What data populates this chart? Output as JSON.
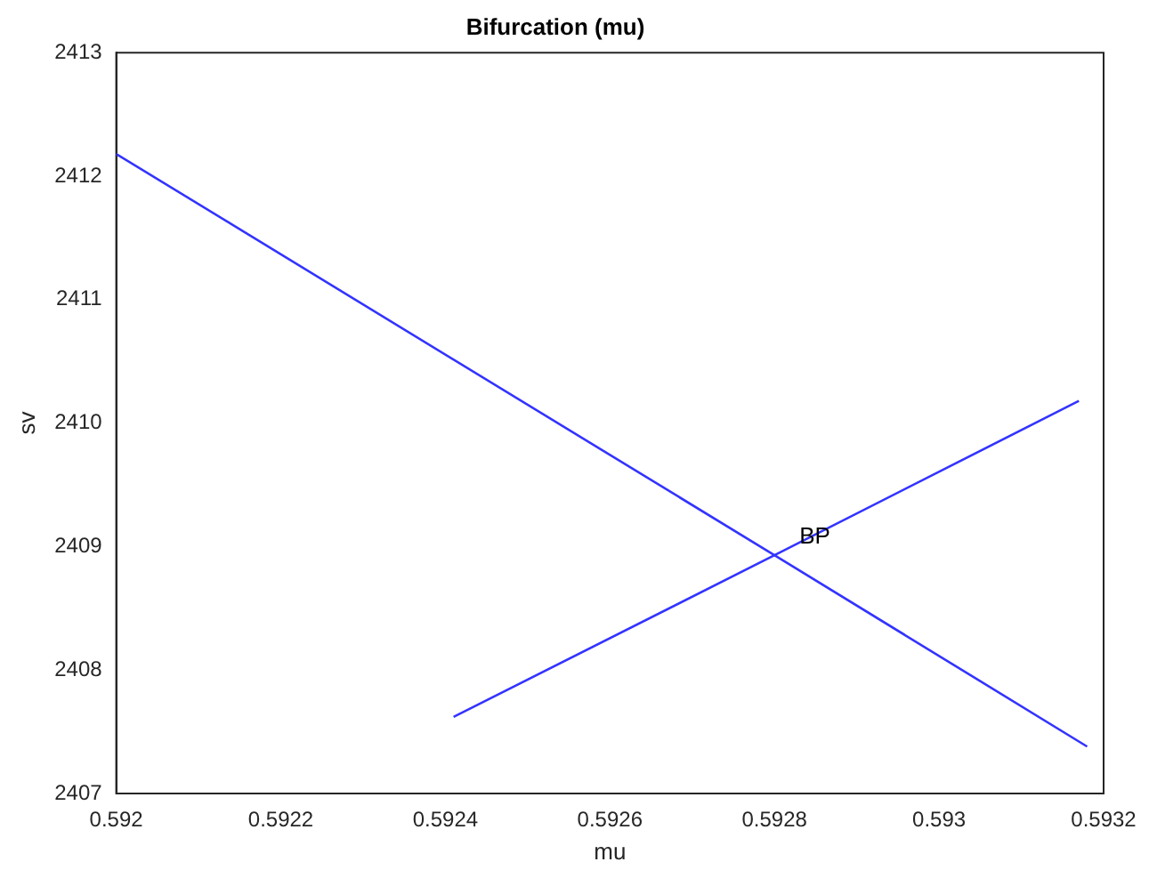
{
  "chart_data": {
    "type": "line",
    "title": "Bifurcation (mu)",
    "xlabel": "mu",
    "ylabel": "sv",
    "series": [
      {
        "color": "#3333ff",
        "x": [
          0.592,
          0.5928,
          0.59318
        ],
        "values": [
          2412.18,
          2408.93,
          2407.38
        ]
      },
      {
        "color": "#3333ff",
        "x": [
          0.59241,
          0.5928,
          0.59317
        ],
        "values": [
          2407.62,
          2408.93,
          2410.18
        ]
      }
    ],
    "annotations": [
      {
        "text": "BP",
        "x": 0.5928,
        "y": 2408.93
      }
    ],
    "xlim": [
      0.592,
      0.5932
    ],
    "xticks": [
      0.592,
      0.5922,
      0.5924,
      0.5926,
      0.5928,
      0.593,
      0.5932
    ],
    "ylim": [
      2407,
      2413
    ],
    "yticks": [
      2407,
      2408,
      2409,
      2410,
      2411,
      2412,
      2413
    ],
    "grid": false,
    "legend": false,
    "marker": "none",
    "line_style": "solid"
  }
}
